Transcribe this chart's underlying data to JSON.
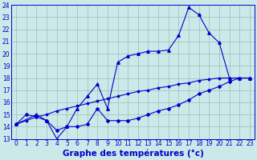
{
  "title": "Graphe des températures (°c)",
  "bg_color": "#cce8e8",
  "line_color": "#0000cc",
  "xlim": [
    -0.5,
    23.5
  ],
  "ylim": [
    13,
    24
  ],
  "xticks": [
    0,
    1,
    2,
    3,
    4,
    5,
    6,
    7,
    8,
    9,
    10,
    11,
    12,
    13,
    14,
    15,
    16,
    17,
    18,
    19,
    20,
    21,
    22,
    23
  ],
  "yticks": [
    13,
    14,
    15,
    16,
    17,
    18,
    19,
    20,
    21,
    22,
    23,
    24
  ],
  "line1_x": [
    0,
    1,
    2,
    3,
    4,
    5,
    6,
    7,
    8,
    9,
    10,
    11,
    12,
    13,
    14,
    15,
    16,
    17,
    18,
    19,
    20,
    21,
    22,
    23
  ],
  "line1_y": [
    14.2,
    14.5,
    14.8,
    15.0,
    15.3,
    15.5,
    15.7,
    15.9,
    16.1,
    16.3,
    16.5,
    16.7,
    16.9,
    17.0,
    17.2,
    17.3,
    17.5,
    17.6,
    17.8,
    17.9,
    18.0,
    18.0,
    18.0,
    18.0
  ],
  "line2_x": [
    0,
    1,
    2,
    3,
    4,
    5,
    6,
    7,
    8,
    9,
    10,
    11,
    12,
    13,
    14,
    15,
    16,
    17,
    18,
    19,
    20,
    21,
    22,
    23
  ],
  "line2_y": [
    14.2,
    15.0,
    14.8,
    14.5,
    13.7,
    14.0,
    14.0,
    14.2,
    15.5,
    14.5,
    14.5,
    14.5,
    14.7,
    15.0,
    15.3,
    15.5,
    15.8,
    16.2,
    16.7,
    17.0,
    17.3,
    17.7,
    18.0,
    18.0
  ],
  "line3_x": [
    0,
    2,
    3,
    4,
    5,
    6,
    7,
    8,
    9,
    10,
    11,
    12,
    13,
    14,
    15,
    16,
    17,
    18,
    19,
    20,
    21,
    22,
    23
  ],
  "line3_y": [
    14.2,
    15.0,
    14.5,
    13.0,
    14.0,
    15.5,
    16.5,
    17.5,
    15.5,
    19.3,
    19.8,
    20.0,
    20.2,
    20.2,
    20.3,
    21.5,
    23.8,
    23.2,
    21.7,
    20.9,
    18.0,
    18.0,
    18.0
  ],
  "grid_color": "#9fbcbc",
  "tick_fontsize": 5.5,
  "xlabel_fontsize": 7.5
}
